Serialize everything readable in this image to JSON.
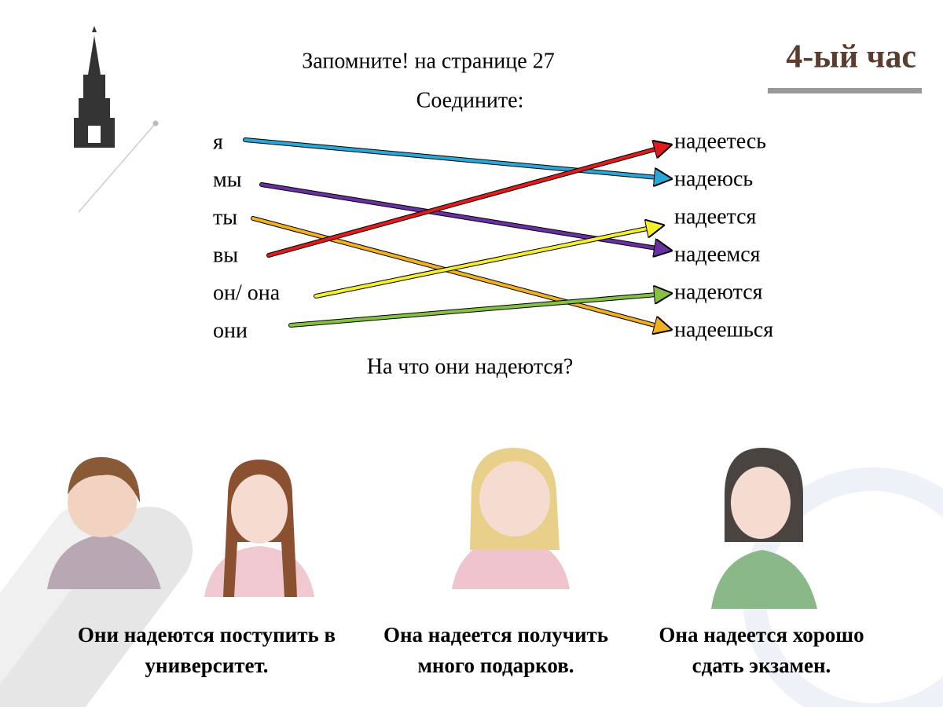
{
  "header": {
    "title": "4-ый час",
    "reference": "Запомните! на странице 27",
    "instruction": "Соедините:"
  },
  "pronouns": [
    "я",
    "мы",
    "ты",
    "вы",
    "он/ она",
    "они"
  ],
  "verb_forms": [
    "надеетесь",
    "надеюсь",
    "надеется",
    "надеемся",
    "надеются",
    "надеешься"
  ],
  "question": "На что они надеются?",
  "captions": [
    {
      "lines": [
        "Они надеются поступить в",
        "университет."
      ]
    },
    {
      "lines": [
        "Она надеется получить",
        "много подарков."
      ]
    },
    {
      "lines": [
        "Она надеется хорошо",
        "сдать экзамен."
      ]
    }
  ]
}
